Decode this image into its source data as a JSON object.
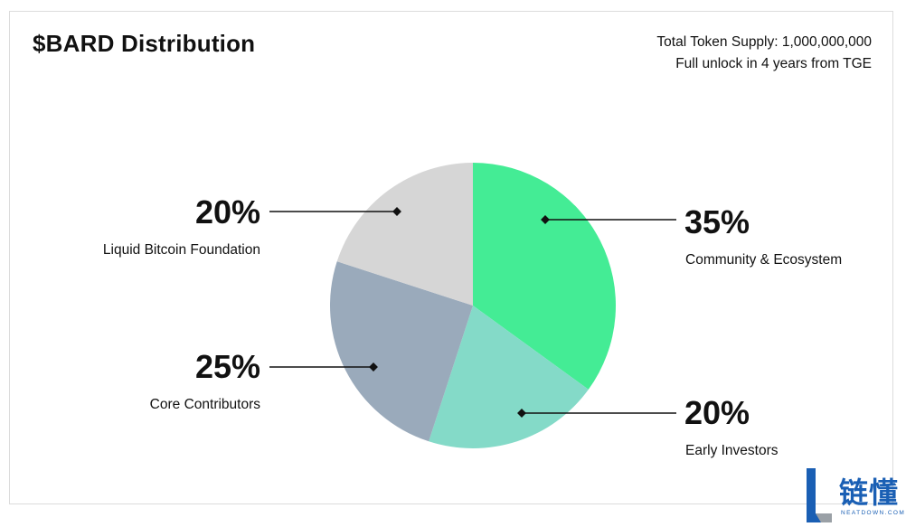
{
  "header": {
    "title": "$BARD Distribution",
    "supply": "Total Token Supply: 1,000,000,000",
    "unlock": "Full unlock in 4 years from TGE"
  },
  "chart_data": {
    "type": "pie",
    "title": "$BARD Distribution",
    "slices": [
      {
        "label": "Community & Ecosystem",
        "value": 35,
        "display": "35%",
        "color": "#44ec95"
      },
      {
        "label": "Early Investors",
        "value": 20,
        "display": "20%",
        "color": "#84dac8"
      },
      {
        "label": "Core Contributors",
        "value": 25,
        "display": "25%",
        "color": "#9aaabb"
      },
      {
        "label": "Liquid Bitcoin Foundation",
        "value": 20,
        "display": "20%",
        "color": "#d6d6d6"
      }
    ]
  },
  "watermark": {
    "chinese": "链懂",
    "sub": "NEATDOWN.COM",
    "colors": {
      "primary": "#1a5fb4",
      "secondary": "#9aa0a6"
    }
  }
}
